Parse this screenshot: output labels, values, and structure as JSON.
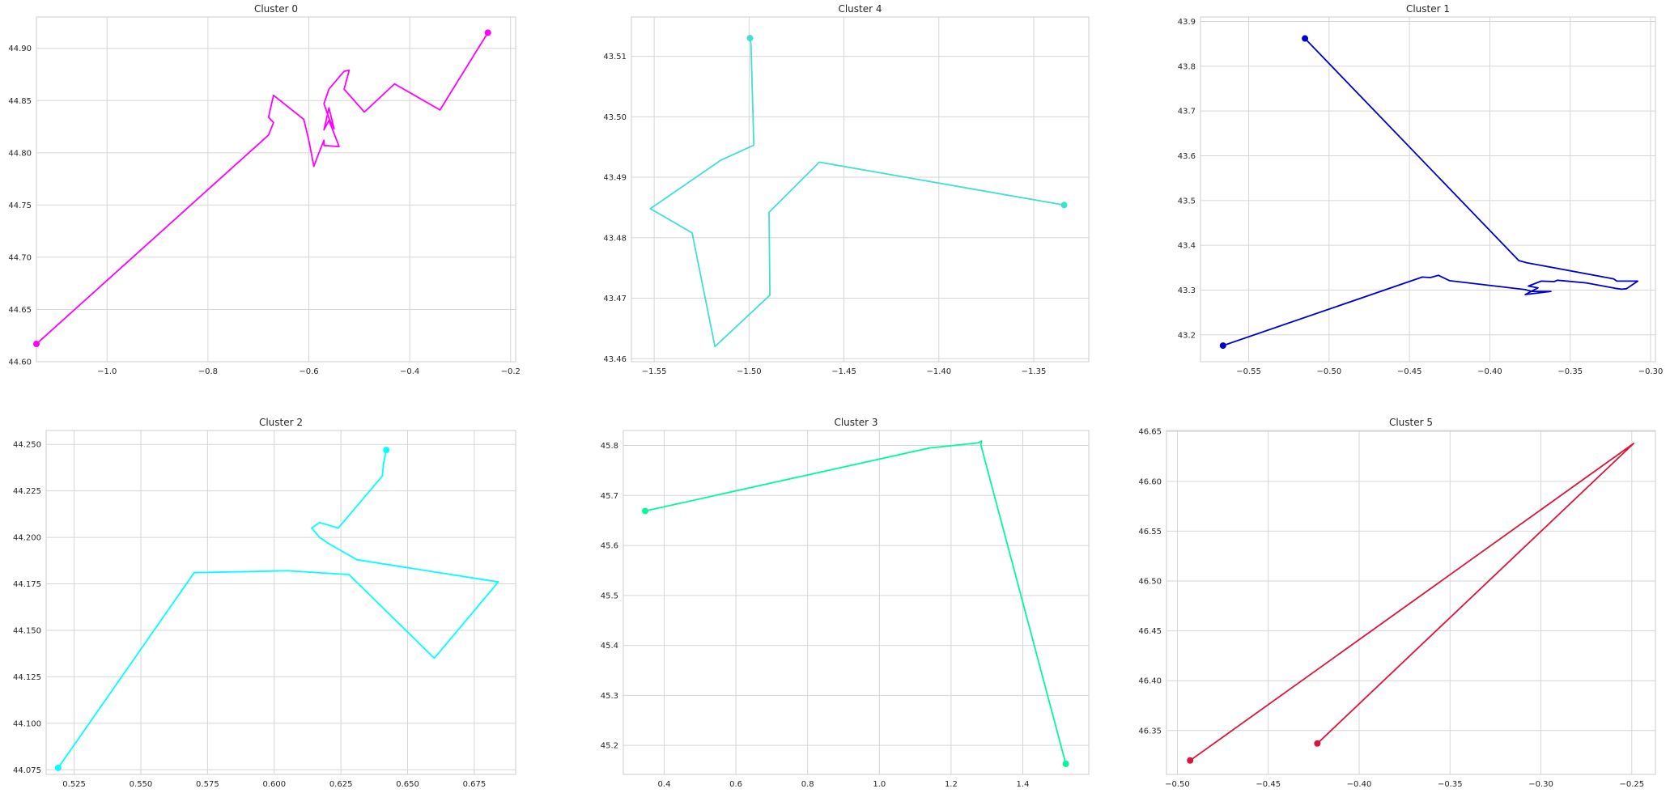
{
  "chart_data": [
    {
      "type": "line",
      "title": "Cluster 0",
      "color": "#ff00ff",
      "xlim": [
        -1.14,
        -0.19
      ],
      "ylim": [
        44.6,
        44.93
      ],
      "xticks": [
        -1.0,
        -0.8,
        -0.6,
        -0.4,
        -0.2
      ],
      "xtick_labels": [
        "−1.0",
        "−0.8",
        "−0.6",
        "−0.4",
        "−0.2"
      ],
      "yticks": [
        44.6,
        44.65,
        44.7,
        44.75,
        44.8,
        44.85,
        44.9
      ],
      "ytick_labels": [
        "44.60",
        "44.65",
        "44.70",
        "44.75",
        "44.80",
        "44.85",
        "44.90"
      ],
      "x": [
        -1.14,
        -0.68,
        -0.67,
        -0.68,
        -0.67,
        -0.61,
        -0.6,
        -0.59,
        -0.58,
        -0.57,
        -0.57,
        -0.54,
        -0.56,
        -0.57,
        -0.56,
        -0.55,
        -0.56,
        -0.57,
        -0.56,
        -0.53,
        -0.52,
        -0.53,
        -0.49,
        -0.43,
        -0.34,
        -0.245
      ],
      "y": [
        44.617,
        44.817,
        44.829,
        44.834,
        44.855,
        44.832,
        44.812,
        44.787,
        44.8,
        44.812,
        44.807,
        44.806,
        44.831,
        44.822,
        44.843,
        44.823,
        44.833,
        44.847,
        44.861,
        44.878,
        44.879,
        44.861,
        44.839,
        44.866,
        44.841,
        44.915
      ],
      "start_marker": [
        -1.14,
        44.617
      ],
      "end_marker": [
        -0.245,
        44.915
      ]
    },
    {
      "type": "line",
      "title": "Cluster 4",
      "color": "#40e0d0",
      "xlim": [
        -1.562,
        -1.321
      ],
      "ylim": [
        43.4595,
        43.5165
      ],
      "xticks": [
        -1.55,
        -1.5,
        -1.45,
        -1.4,
        -1.35
      ],
      "xtick_labels": [
        "−1.55",
        "−1.50",
        "−1.45",
        "−1.40",
        "−1.35"
      ],
      "yticks": [
        43.46,
        43.47,
        43.48,
        43.49,
        43.5,
        43.51
      ],
      "ytick_labels": [
        "43.46",
        "43.47",
        "43.48",
        "43.49",
        "43.50",
        "43.51"
      ],
      "x": [
        -1.4995,
        -1.499,
        -1.4975,
        -1.515,
        -1.552,
        -1.53,
        -1.518,
        -1.489,
        -1.4895,
        -1.463,
        -1.334
      ],
      "y": [
        43.513,
        43.512,
        43.4953,
        43.4928,
        43.4848,
        43.4808,
        43.462,
        43.4705,
        43.4842,
        43.4925,
        43.4854
      ],
      "start_marker": [
        -1.4995,
        43.513
      ],
      "end_marker": [
        -1.334,
        43.4854
      ]
    },
    {
      "type": "line",
      "title": "Cluster 1",
      "color": "#0000cd",
      "xlim": [
        -0.58,
        -0.297
      ],
      "ylim": [
        43.14,
        43.91
      ],
      "xticks": [
        -0.55,
        -0.5,
        -0.45,
        -0.4,
        -0.35,
        -0.3
      ],
      "xtick_labels": [
        "−0.55",
        "−0.50",
        "−0.45",
        "−0.40",
        "−0.35",
        "−0.30"
      ],
      "yticks": [
        43.2,
        43.3,
        43.4,
        43.5,
        43.6,
        43.7,
        43.8,
        43.9
      ],
      "ytick_labels": [
        "43.2",
        "43.3",
        "43.4",
        "43.5",
        "43.6",
        "43.7",
        "43.8",
        "43.9"
      ],
      "x": [
        -0.515,
        -0.382,
        -0.377,
        -0.323,
        -0.321,
        -0.308,
        -0.315,
        -0.318,
        -0.322,
        -0.34,
        -0.358,
        -0.36,
        -0.368,
        -0.376,
        -0.37,
        -0.378,
        -0.362,
        -0.374,
        -0.378,
        -0.425,
        -0.432,
        -0.437,
        -0.442,
        -0.566
      ],
      "y": [
        43.862,
        43.366,
        43.361,
        43.325,
        43.32,
        43.32,
        43.303,
        43.302,
        43.304,
        43.316,
        43.322,
        43.319,
        43.32,
        43.309,
        43.305,
        43.29,
        43.297,
        43.297,
        43.301,
        43.321,
        43.333,
        43.328,
        43.329,
        43.176
      ],
      "start_marker": [
        -0.515,
        43.862
      ],
      "end_marker": [
        -0.566,
        43.176
      ]
    },
    {
      "type": "line",
      "title": "Cluster 2",
      "color": "#00ffff",
      "xlim": [
        0.5145,
        0.6905
      ],
      "ylim": [
        44.0725,
        44.2575
      ],
      "xticks": [
        0.525,
        0.55,
        0.575,
        0.6,
        0.625,
        0.65,
        0.675
      ],
      "xtick_labels": [
        "0.525",
        "0.550",
        "0.575",
        "0.600",
        "0.625",
        "0.650",
        "0.675"
      ],
      "yticks": [
        44.075,
        44.1,
        44.125,
        44.15,
        44.175,
        44.2,
        44.225,
        44.25
      ],
      "ytick_labels": [
        "44.075",
        "44.100",
        "44.125",
        "44.150",
        "44.175",
        "44.200",
        "44.225",
        "44.250"
      ],
      "x": [
        0.642,
        0.641,
        0.6405,
        0.624,
        0.617,
        0.614,
        0.617,
        0.62,
        0.631,
        0.684,
        0.66,
        0.628,
        0.605,
        0.57,
        0.519
      ],
      "y": [
        44.247,
        44.24,
        44.233,
        44.205,
        44.208,
        44.205,
        44.2,
        44.197,
        44.188,
        44.176,
        44.135,
        44.18,
        44.182,
        44.181,
        44.076
      ],
      "start_marker": [
        0.642,
        44.247
      ],
      "end_marker": [
        0.519,
        44.076
      ]
    },
    {
      "type": "line",
      "title": "Cluster 3",
      "color": "#00fa9a",
      "xlim": [
        0.286,
        1.584
      ],
      "ylim": [
        45.142,
        45.83
      ],
      "xticks": [
        0.4,
        0.6,
        0.8,
        1.0,
        1.2,
        1.4
      ],
      "xtick_labels": [
        "0.4",
        "0.6",
        "0.8",
        "1.0",
        "1.2",
        "1.4"
      ],
      "yticks": [
        45.2,
        45.3,
        45.4,
        45.5,
        45.6,
        45.7,
        45.8
      ],
      "ytick_labels": [
        "45.2",
        "45.3",
        "45.4",
        "45.5",
        "45.6",
        "45.7",
        "45.8"
      ],
      "x": [
        0.347,
        1.14,
        1.275,
        1.285,
        1.283,
        1.52
      ],
      "y": [
        45.669,
        45.795,
        45.805,
        45.809,
        45.801,
        45.163
      ],
      "start_marker": [
        0.347,
        45.669
      ],
      "end_marker": [
        1.52,
        45.163
      ]
    },
    {
      "type": "line",
      "title": "Cluster 5",
      "color": "#dc143c",
      "xlim": [
        -0.506,
        -0.237
      ],
      "ylim": [
        46.306,
        46.651
      ],
      "xticks": [
        -0.5,
        -0.45,
        -0.4,
        -0.35,
        -0.3,
        -0.25
      ],
      "xtick_labels": [
        "−0.50",
        "−0.45",
        "−0.40",
        "−0.35",
        "−0.30",
        "−0.25"
      ],
      "yticks": [
        46.35,
        46.4,
        46.45,
        46.5,
        46.55,
        46.6,
        46.65
      ],
      "ytick_labels": [
        "46.35",
        "46.40",
        "46.45",
        "46.50",
        "46.55",
        "46.60",
        "46.65"
      ],
      "x": [
        -0.423,
        -0.249,
        -0.493
      ],
      "y": [
        46.337,
        46.638,
        46.32
      ],
      "start_marker": [
        -0.423,
        46.337
      ],
      "end_marker": [
        -0.493,
        46.32
      ]
    }
  ]
}
